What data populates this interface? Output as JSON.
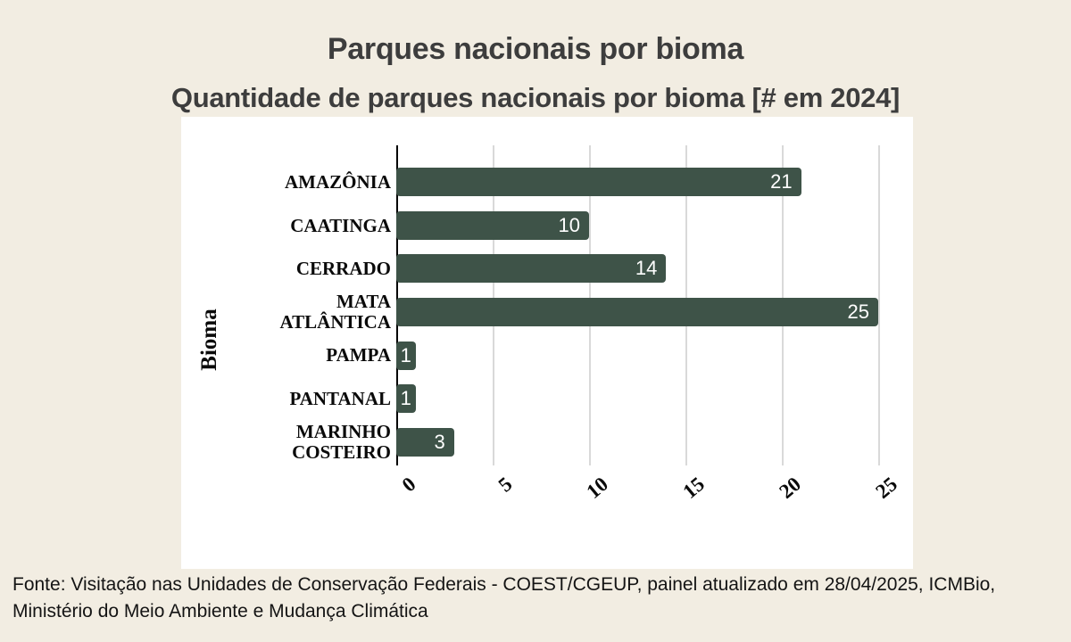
{
  "page": {
    "background_color": "#f2ede2",
    "title": "Parques nacionais por bioma",
    "subtitle": "Quantidade de parques nacionais por bioma [# em 2024]",
    "title_color": "#3d3d3d",
    "source_note": "Fonte: Visitação nas Unidades de Conservação Federais - COEST/CGEUP, painel atualizado em 28/04/2025, ICMBio,\nMinistério do Meio Ambiente e Mudança Climática"
  },
  "chart_data": {
    "type": "bar",
    "orientation": "horizontal",
    "title": "Parques nacionais por bioma",
    "subtitle": "Quantidade de parques nacionais por bioma [# em 2024]",
    "ylabel": "Bioma",
    "xlabel": "",
    "categories": [
      "AMAZÔNIA",
      "CAATINGA",
      "CERRADO",
      "MATA\nATLÂNTICA",
      "PAMPA",
      "PANTANAL",
      "MARINHO\nCOSTEIRO"
    ],
    "values": [
      21,
      10,
      14,
      25,
      1,
      1,
      3
    ],
    "xticks": [
      0,
      5,
      10,
      15,
      20,
      25
    ],
    "xlim": [
      0,
      26.8
    ],
    "grid": true,
    "legend": "none",
    "bar_color": "#3e5348",
    "value_label_color": "#ffffff",
    "gridline_color": "#d9d9d9",
    "axis_color": "#000000",
    "plot_background": "#ffffff"
  }
}
